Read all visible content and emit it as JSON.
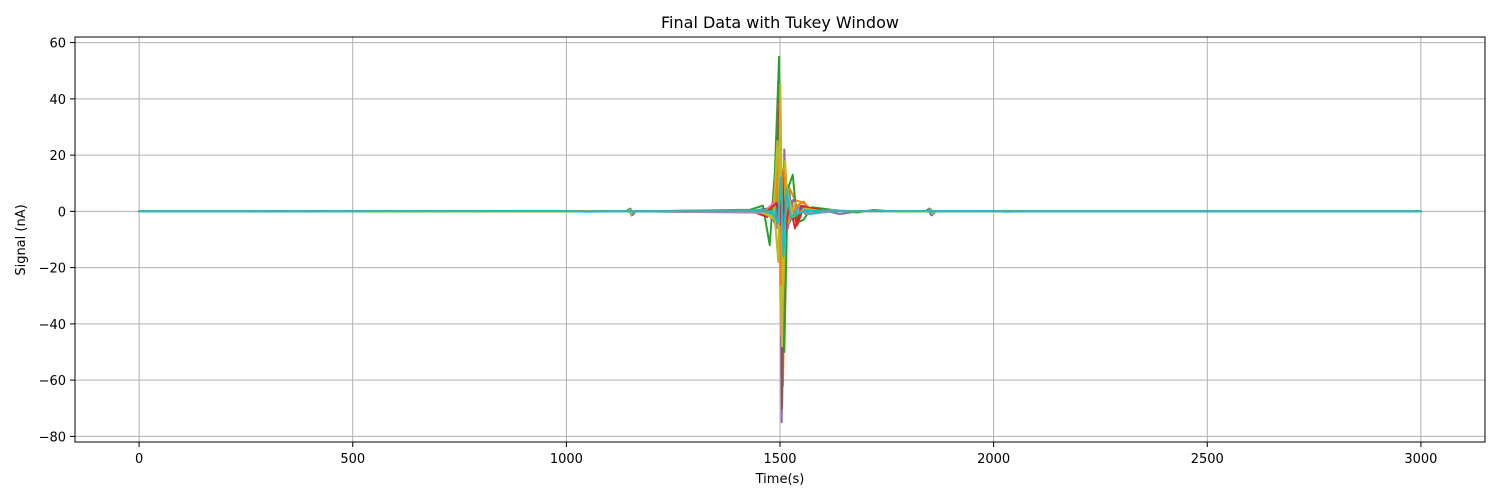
{
  "chart_data": {
    "type": "line",
    "title": "Final Data with Tukey Window",
    "xlabel": "Time(s)",
    "ylabel": "Signal (nA)",
    "xlim": [
      -150,
      3150
    ],
    "ylim": [
      -82,
      62
    ],
    "xticks": [
      0,
      500,
      1000,
      1500,
      2000,
      2500,
      3000
    ],
    "yticks": [
      60,
      40,
      20,
      0,
      -20,
      -40,
      -60,
      -80
    ],
    "xtick_labels": [
      "0",
      "500",
      "1000",
      "1500",
      "2000",
      "2500",
      "3000"
    ],
    "ytick_labels": [
      "60",
      "40",
      "20",
      "0",
      "−20",
      "−40",
      "−60",
      "−80"
    ],
    "grid": true,
    "legend": "none",
    "series": [
      {
        "color": "#1f77b4",
        "points": [
          [
            0,
            0
          ],
          [
            1000,
            0
          ],
          [
            1140,
            0
          ],
          [
            1148,
            0.6
          ],
          [
            1152,
            -0.9
          ],
          [
            1160,
            0
          ],
          [
            1440,
            0.3
          ],
          [
            1470,
            1
          ],
          [
            1490,
            -4
          ],
          [
            1495,
            10
          ],
          [
            1500,
            32
          ],
          [
            1503,
            -8
          ],
          [
            1508,
            -35
          ],
          [
            1512,
            4
          ],
          [
            1520,
            9
          ],
          [
            1530,
            -3
          ],
          [
            1545,
            2
          ],
          [
            1560,
            -1
          ],
          [
            1580,
            0.6
          ],
          [
            1620,
            0
          ],
          [
            1840,
            0
          ],
          [
            1848,
            0.8
          ],
          [
            1853,
            -1.2
          ],
          [
            1860,
            0
          ],
          [
            3000,
            0
          ]
        ]
      },
      {
        "color": "#ff7f0e",
        "points": [
          [
            0,
            0
          ],
          [
            1100,
            0
          ],
          [
            1145,
            0
          ],
          [
            1149,
            1
          ],
          [
            1153,
            -1.5
          ],
          [
            1160,
            0
          ],
          [
            1450,
            0.4
          ],
          [
            1480,
            -1
          ],
          [
            1492,
            8
          ],
          [
            1497,
            28
          ],
          [
            1502,
            -12
          ],
          [
            1507,
            -62
          ],
          [
            1512,
            -5
          ],
          [
            1520,
            9
          ],
          [
            1535,
            4
          ],
          [
            1555,
            3
          ],
          [
            1570,
            1
          ],
          [
            1600,
            0
          ],
          [
            1845,
            0
          ],
          [
            1850,
            1
          ],
          [
            1855,
            -1.3
          ],
          [
            1862,
            0
          ],
          [
            3000,
            0
          ]
        ]
      },
      {
        "color": "#2ca02c",
        "points": [
          [
            0,
            0
          ],
          [
            1100,
            0
          ],
          [
            1140,
            0
          ],
          [
            1147,
            0.8
          ],
          [
            1152,
            -1.1
          ],
          [
            1160,
            0
          ],
          [
            1430,
            0.6
          ],
          [
            1460,
            2
          ],
          [
            1476,
            -12
          ],
          [
            1488,
            14
          ],
          [
            1498,
            55
          ],
          [
            1504,
            -30
          ],
          [
            1510,
            -50
          ],
          [
            1518,
            8
          ],
          [
            1530,
            13
          ],
          [
            1540,
            -4
          ],
          [
            1555,
            -3
          ],
          [
            1575,
            1.5
          ],
          [
            1620,
            0.6
          ],
          [
            1680,
            -0.4
          ],
          [
            1720,
            0.5
          ],
          [
            1760,
            0
          ],
          [
            1845,
            0
          ],
          [
            1850,
            1
          ],
          [
            1856,
            -1.4
          ],
          [
            1862,
            0
          ],
          [
            3000,
            0
          ]
        ]
      },
      {
        "color": "#d62728",
        "points": [
          [
            0,
            0
          ],
          [
            1100,
            0
          ],
          [
            1146,
            0
          ],
          [
            1150,
            0.9
          ],
          [
            1155,
            -1.2
          ],
          [
            1162,
            0
          ],
          [
            1440,
            -0.3
          ],
          [
            1470,
            -2
          ],
          [
            1490,
            6
          ],
          [
            1499,
            40
          ],
          [
            1505,
            -45
          ],
          [
            1510,
            -6
          ],
          [
            1520,
            6
          ],
          [
            1540,
            -5
          ],
          [
            1555,
            1.5
          ],
          [
            1600,
            0.5
          ],
          [
            1650,
            0
          ],
          [
            1850,
            0
          ],
          [
            1853,
            0.7
          ],
          [
            1858,
            -1
          ],
          [
            1864,
            0
          ],
          [
            3000,
            0
          ]
        ]
      },
      {
        "color": "#9467bd",
        "points": [
          [
            0,
            0
          ],
          [
            1100,
            0
          ],
          [
            1144,
            0
          ],
          [
            1149,
            0.5
          ],
          [
            1153,
            -0.8
          ],
          [
            1160,
            0
          ],
          [
            1450,
            -0.2
          ],
          [
            1475,
            1
          ],
          [
            1492,
            -6
          ],
          [
            1500,
            28
          ],
          [
            1504,
            -75
          ],
          [
            1510,
            22
          ],
          [
            1518,
            -6
          ],
          [
            1530,
            4
          ],
          [
            1560,
            -1
          ],
          [
            1600,
            0.5
          ],
          [
            1640,
            -1
          ],
          [
            1680,
            0
          ],
          [
            1845,
            0
          ],
          [
            1849,
            0.6
          ],
          [
            1854,
            -0.9
          ],
          [
            1860,
            0
          ],
          [
            3000,
            0
          ]
        ]
      },
      {
        "color": "#8c564b",
        "points": [
          [
            0,
            0
          ],
          [
            1100,
            0
          ],
          [
            1145,
            0
          ],
          [
            1150,
            0.6
          ],
          [
            1154,
            -0.7
          ],
          [
            1160,
            0
          ],
          [
            1460,
            0.3
          ],
          [
            1485,
            -3
          ],
          [
            1495,
            15
          ],
          [
            1501,
            42
          ],
          [
            1505,
            -70
          ],
          [
            1511,
            10
          ],
          [
            1522,
            -4
          ],
          [
            1540,
            2
          ],
          [
            1580,
            0
          ],
          [
            1850,
            0
          ],
          [
            1854,
            0.5
          ],
          [
            1858,
            -0.8
          ],
          [
            1864,
            0
          ],
          [
            3000,
            0
          ]
        ]
      },
      {
        "color": "#e377c2",
        "points": [
          [
            0,
            0
          ],
          [
            1100,
            0
          ],
          [
            1147,
            0
          ],
          [
            1151,
            0.4
          ],
          [
            1155,
            -0.6
          ],
          [
            1162,
            0
          ],
          [
            1460,
            -0.5
          ],
          [
            1485,
            3
          ],
          [
            1496,
            20
          ],
          [
            1502,
            -44
          ],
          [
            1508,
            8
          ],
          [
            1520,
            -2
          ],
          [
            1545,
            1.5
          ],
          [
            1580,
            -0.8
          ],
          [
            1620,
            0
          ],
          [
            1848,
            0
          ],
          [
            1852,
            0.4
          ],
          [
            1857,
            -0.6
          ],
          [
            1862,
            0
          ],
          [
            3000,
            0
          ]
        ]
      },
      {
        "color": "#7f7f7f",
        "points": [
          [
            0,
            0
          ],
          [
            1100,
            0
          ],
          [
            1146,
            0
          ],
          [
            1150,
            0.5
          ],
          [
            1154,
            -0.7
          ],
          [
            1160,
            0
          ],
          [
            1465,
            0.2
          ],
          [
            1490,
            -2
          ],
          [
            1498,
            12
          ],
          [
            1503,
            -20
          ],
          [
            1510,
            5
          ],
          [
            1525,
            -2
          ],
          [
            1560,
            0.5
          ],
          [
            1600,
            0
          ],
          [
            1850,
            0
          ],
          [
            1854,
            0.5
          ],
          [
            1858,
            -0.7
          ],
          [
            1864,
            0
          ],
          [
            3000,
            0
          ]
        ]
      },
      {
        "color": "#bcbd22",
        "points": [
          [
            0,
            0
          ],
          [
            1100,
            0
          ],
          [
            1145,
            0
          ],
          [
            1149,
            0.7
          ],
          [
            1153,
            -1
          ],
          [
            1160,
            0
          ],
          [
            1460,
            0.4
          ],
          [
            1485,
            -2
          ],
          [
            1494,
            25
          ],
          [
            1499,
            -10
          ],
          [
            1505,
            -48
          ],
          [
            1512,
            18
          ],
          [
            1520,
            -4
          ],
          [
            1535,
            3
          ],
          [
            1565,
            -1
          ],
          [
            1620,
            0.5
          ],
          [
            1680,
            0
          ],
          [
            1848,
            0
          ],
          [
            1852,
            0.7
          ],
          [
            1857,
            -1
          ],
          [
            1863,
            0
          ],
          [
            3000,
            0
          ]
        ]
      },
      {
        "color": "#17becf",
        "points": [
          [
            0,
            0
          ],
          [
            1100,
            0
          ],
          [
            1148,
            0
          ],
          [
            1152,
            0.3
          ],
          [
            1156,
            -0.5
          ],
          [
            1162,
            0
          ],
          [
            1465,
            0.3
          ],
          [
            1488,
            -1.5
          ],
          [
            1497,
            9
          ],
          [
            1503,
            16
          ],
          [
            1508,
            -17
          ],
          [
            1514,
            6
          ],
          [
            1525,
            -3
          ],
          [
            1545,
            1.5
          ],
          [
            1570,
            -1
          ],
          [
            1610,
            0.4
          ],
          [
            1650,
            0
          ],
          [
            1850,
            0
          ],
          [
            1854,
            0.4
          ],
          [
            1858,
            -0.5
          ],
          [
            1863,
            0
          ],
          [
            3000,
            0
          ]
        ]
      },
      {
        "color": "#ff7f0e",
        "points": [
          [
            0,
            0
          ],
          [
            1100,
            0
          ],
          [
            1460,
            0
          ],
          [
            1490,
            2
          ],
          [
            1497,
            19
          ],
          [
            1502,
            -26
          ],
          [
            1508,
            15
          ],
          [
            1520,
            -3
          ],
          [
            1540,
            2
          ],
          [
            1555,
            3.5
          ],
          [
            1570,
            0.5
          ],
          [
            1620,
            0
          ],
          [
            3000,
            0
          ]
        ]
      },
      {
        "color": "#d62728",
        "points": [
          [
            0,
            0
          ],
          [
            1100,
            0
          ],
          [
            1470,
            0
          ],
          [
            1492,
            3
          ],
          [
            1499,
            -5
          ],
          [
            1505,
            14
          ],
          [
            1512,
            -8
          ],
          [
            1522,
            3
          ],
          [
            1535,
            -6
          ],
          [
            1550,
            2
          ],
          [
            1600,
            0
          ],
          [
            3000,
            0
          ]
        ]
      },
      {
        "color": "#bcbd22",
        "points": [
          [
            0,
            0
          ],
          [
            1100,
            0
          ],
          [
            1455,
            0
          ],
          [
            1488,
            -3
          ],
          [
            1496,
            -18
          ],
          [
            1501,
            45
          ],
          [
            1507,
            -30
          ],
          [
            1515,
            10
          ],
          [
            1530,
            -2
          ],
          [
            1560,
            1
          ],
          [
            1600,
            0
          ],
          [
            3000,
            0
          ]
        ]
      },
      {
        "color": "#17becf",
        "points": [
          [
            0,
            0
          ],
          [
            1000,
            0.1
          ],
          [
            1050,
            -0.1
          ],
          [
            1100,
            0
          ],
          [
            1480,
            0
          ],
          [
            1495,
            -4
          ],
          [
            1502,
            12
          ],
          [
            1508,
            -16
          ],
          [
            1515,
            8
          ],
          [
            1525,
            -2
          ],
          [
            1560,
            0.4
          ],
          [
            1600,
            0
          ],
          [
            2000,
            0.1
          ],
          [
            2030,
            -0.1
          ],
          [
            2060,
            0
          ],
          [
            3000,
            0
          ]
        ]
      }
    ]
  }
}
